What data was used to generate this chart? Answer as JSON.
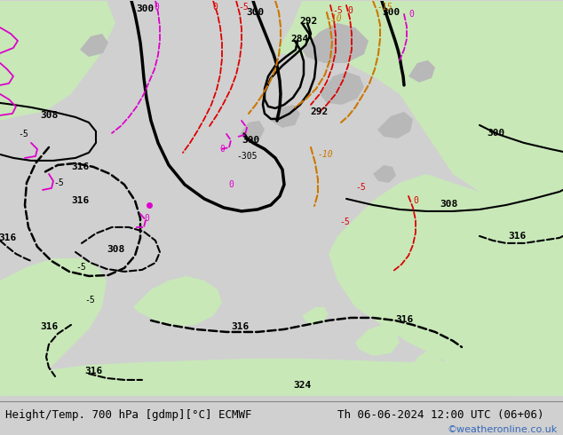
{
  "title_left": "Height/Temp. 700 hPa [gdmp][°C] ECMWF",
  "title_right": "Th 06-06-2024 12:00 UTC (06+06)",
  "watermark": "©weatheronline.co.uk",
  "bg_land_light": "#c8e8b8",
  "bg_land_gray": "#b8b8b8",
  "bg_sea": "#e8e8e8",
  "bg_outer": "#d0d0d0",
  "fig_width": 6.34,
  "fig_height": 4.9,
  "dpi": 100,
  "title_fontsize": 9,
  "watermark_color": "#3366bb",
  "black": "#000000",
  "orange": "#cc7700",
  "red": "#dd0000",
  "magenta": "#dd00cc",
  "annotation_fontsize": 8
}
